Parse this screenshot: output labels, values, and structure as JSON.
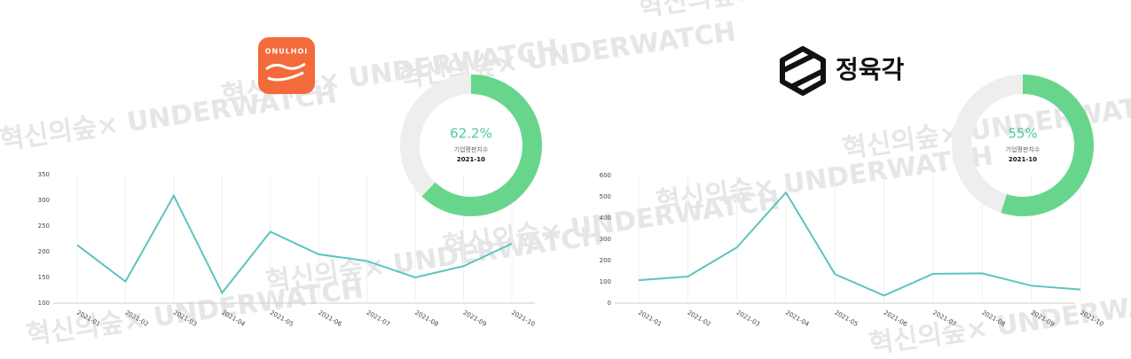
{
  "watermark": {
    "brand": "혁신의숲",
    "cross": "×",
    "name": "UNDERWATCH"
  },
  "chart_data": [
    {
      "type": "line",
      "logo": "ONULHOI",
      "gauge": {
        "value": 62.2,
        "value_label": "62.2%",
        "label": "기업평판지수",
        "period": "2021-10",
        "color": "#67d68c"
      },
      "categories": [
        "2021-01",
        "2021-02",
        "2021-03",
        "2021-04",
        "2021-05",
        "2021-06",
        "2021-07",
        "2021-08",
        "2021-09",
        "2021-10"
      ],
      "values": [
        213,
        142,
        309,
        120,
        239,
        195,
        182,
        150,
        172,
        216
      ],
      "color": "#5bc4bf",
      "ylim": [
        100,
        350
      ],
      "yticks": [
        100,
        150,
        200,
        250,
        300,
        350
      ],
      "grid": true
    },
    {
      "type": "line",
      "logo": "정육각",
      "gauge": {
        "value": 55,
        "value_label": "55%",
        "label": "기업평판지수",
        "period": "2021-10",
        "color": "#67d68c"
      },
      "categories": [
        "2021-01",
        "2021-02",
        "2021-03",
        "2021-04",
        "2021-05",
        "2021-06",
        "2021-07",
        "2021-08",
        "2021-09",
        "2021-10"
      ],
      "values": [
        108,
        125,
        262,
        520,
        136,
        36,
        138,
        140,
        82,
        64
      ],
      "color": "#5bc4bf",
      "ylim": [
        0,
        600
      ],
      "yticks": [
        0,
        100,
        200,
        300,
        400,
        500,
        600
      ],
      "grid": true
    }
  ]
}
